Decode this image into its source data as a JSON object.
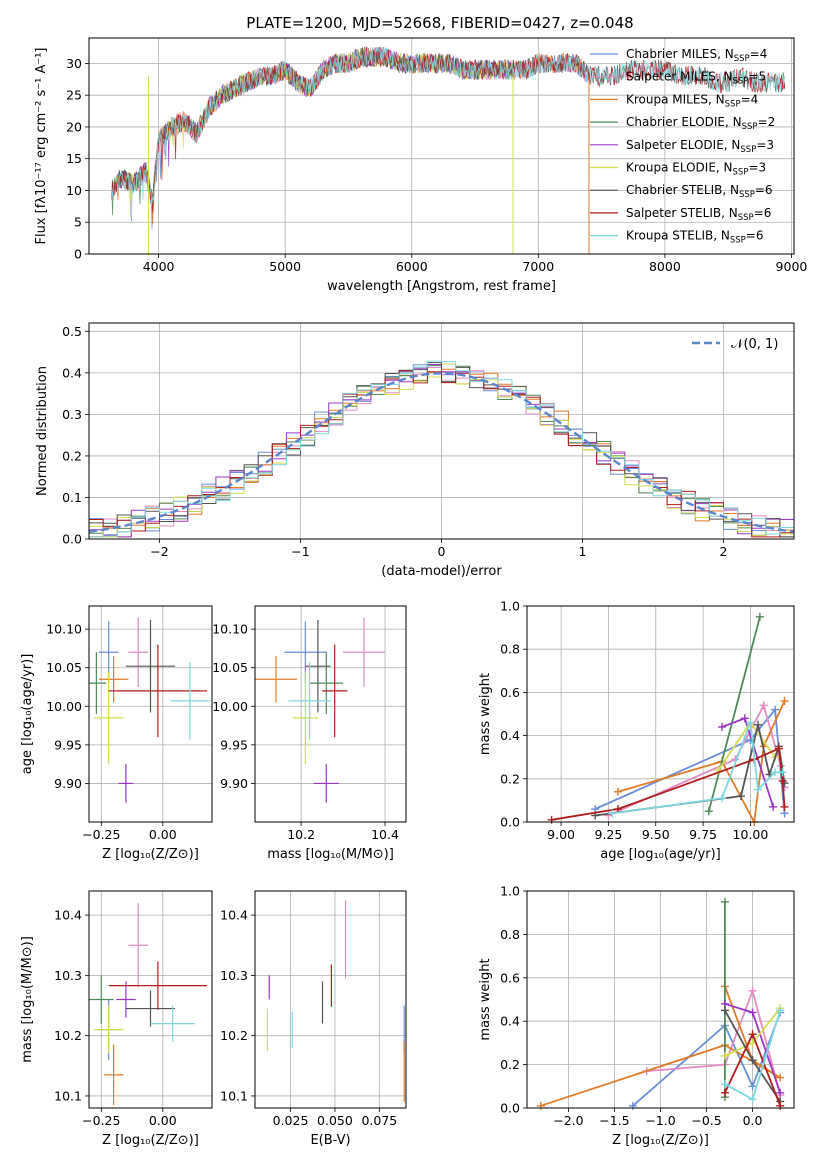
{
  "colors": {
    "c1": "#6a8fd8",
    "c2": "#e38bc3",
    "c3": "#e07b2a",
    "c4": "#4f8a5a",
    "c5": "#9a39c4",
    "c6": "#d4dc55",
    "c7": "#555555",
    "c8": "#b01e1e",
    "c9": "#7fd8e0",
    "norm": "#5a86cc"
  },
  "chart_data": [
    {
      "type": "line",
      "title": "PLATE=1200, MJD=52668, FIBERID=0427, z=0.048",
      "xlabel": "wavelength [Angstrom, rest frame]",
      "ylabel": "Flux [fλ10⁻¹⁷ erg cm⁻² s⁻¹ A⁻¹]",
      "xlim": [
        3450,
        9020
      ],
      "ylim": [
        0,
        34
      ],
      "xticks": [
        "4000",
        "5000",
        "6000",
        "7000",
        "8000",
        "9000"
      ],
      "yticks": [
        "0",
        "5",
        "10",
        "15",
        "20",
        "25",
        "30"
      ],
      "x": [
        3630,
        3700,
        3800,
        3900,
        3950,
        4000,
        4100,
        4200,
        4300,
        4400,
        4500,
        4600,
        4700,
        4800,
        4900,
        5000,
        5100,
        5200,
        5300,
        5400,
        5500,
        5600,
        5700,
        5800,
        5900,
        6000,
        6100,
        6200,
        6300,
        6400,
        6500,
        6600,
        6700,
        6800,
        6900,
        7000,
        7100,
        7200,
        7300,
        7400,
        7500,
        7600,
        7700,
        7800,
        7900,
        8000,
        8100,
        8200,
        8300,
        8400,
        8500,
        8600,
        8700,
        8800,
        8900
      ],
      "flux": [
        10,
        12,
        11,
        13,
        8,
        18,
        20,
        21,
        19,
        23,
        25,
        26,
        27,
        28,
        28,
        29,
        27,
        26,
        29,
        30,
        30,
        31,
        31,
        31,
        30,
        30,
        30,
        30,
        30,
        29,
        29,
        29,
        29,
        29,
        29,
        30,
        30,
        30,
        30,
        28,
        28,
        28,
        29,
        29,
        29,
        29,
        28,
        28,
        28,
        27,
        27,
        28,
        27,
        27,
        27
      ],
      "series": [
        {
          "name": "Chabrier MILES, N",
          "sub": "SSP",
          "n": "=4",
          "color": "#6a8fd8",
          "xmax": 7400
        },
        {
          "name": "Salpeter MILES, N",
          "sub": "SSP",
          "n": "=5",
          "color": "#e38bc3",
          "xmax": 7400
        },
        {
          "name": "Kroupa MILES, N",
          "sub": "SSP",
          "n": "=4",
          "color": "#e07b2a",
          "xmax": 7400
        },
        {
          "name": "Chabrier ELODIE, N",
          "sub": "SSP",
          "n": "=2",
          "color": "#4f8a5a",
          "xmax": 6800
        },
        {
          "name": "Salpeter ELODIE, N",
          "sub": "SSP",
          "n": "=3",
          "color": "#9a39c4",
          "xmax": 6800
        },
        {
          "name": "Kroupa ELODIE, N",
          "sub": "SSP",
          "n": "=3",
          "color": "#d4dc55",
          "xmax": 6800
        },
        {
          "name": "Chabrier STELIB, N",
          "sub": "SSP",
          "n": "=6",
          "color": "#555555",
          "xmax": 8950
        },
        {
          "name": "Salpeter STELIB, N",
          "sub": "SSP",
          "n": "=6",
          "color": "#b01e1e",
          "xmax": 8950
        },
        {
          "name": "Kroupa STELIB, N",
          "sub": "SSP",
          "n": "=6",
          "color": "#7fd8e0",
          "xmax": 8950
        }
      ],
      "legend": "upper right"
    },
    {
      "type": "line",
      "xlabel": "(data-model)/error",
      "ylabel": "Normed distribution",
      "xlim": [
        -2.5,
        2.5
      ],
      "ylim": [
        0,
        0.52
      ],
      "xticks": [
        "−2",
        "−1",
        "0",
        "1",
        "2"
      ],
      "yticks": [
        "0.0",
        "0.1",
        "0.2",
        "0.3",
        "0.4",
        "0.5"
      ],
      "legend": "upper right",
      "curve_label": "𝒩(0, 1)",
      "bin_width": 0.1,
      "grid": true
    },
    {
      "type": "scatter",
      "xlabel": "Z [log₁₀(Z/Z⊙)]",
      "ylabel": "age  [log₁₀(age/yr)]",
      "xlim": [
        -0.3,
        0.2
      ],
      "ylim": [
        9.85,
        10.13
      ],
      "xticks": [
        "−0.25",
        "0.00"
      ],
      "yticks": [
        "9.90",
        "9.95",
        "10.00",
        "10.05",
        "10.10"
      ],
      "points": [
        {
          "x": -0.22,
          "xerr": 0.04,
          "y": 10.07,
          "yerr": 0.04,
          "c": "c1"
        },
        {
          "x": -0.1,
          "xerr": 0.04,
          "y": 10.07,
          "yerr": 0.045,
          "c": "c2"
        },
        {
          "x": -0.2,
          "xerr": 0.06,
          "y": 10.035,
          "yerr": 0.03,
          "c": "c3"
        },
        {
          "x": -0.27,
          "xerr": 0.04,
          "y": 10.03,
          "yerr": 0.04,
          "c": "c4"
        },
        {
          "x": -0.15,
          "xerr": 0.03,
          "y": 9.9,
          "yerr": 0.025,
          "c": "c5"
        },
        {
          "x": -0.22,
          "xerr": 0.06,
          "y": 9.985,
          "yerr": 0.06,
          "c": "c6"
        },
        {
          "x": -0.05,
          "xerr": 0.1,
          "y": 10.052,
          "yerr": 0.06,
          "c": "c7"
        },
        {
          "x": -0.02,
          "xerr": 0.2,
          "y": 10.02,
          "yerr": 0.06,
          "c": "c8"
        },
        {
          "x": 0.11,
          "xerr": 0.08,
          "y": 10.007,
          "yerr": 0.05,
          "c": "c9"
        }
      ]
    },
    {
      "type": "scatter",
      "xlabel": "mass [log₁₀(M/M⊙)]",
      "ylabel": "",
      "xlim": [
        10.09,
        10.45
      ],
      "ylim": [
        9.85,
        10.13
      ],
      "xticks": [
        "10.2",
        "10.4"
      ],
      "yticks": [
        "9.90",
        "9.95",
        "10.00",
        "10.05",
        "10.10"
      ],
      "points": [
        {
          "x": 10.21,
          "xerr": 0.05,
          "y": 10.07,
          "yerr": 0.04,
          "c": "c1"
        },
        {
          "x": 10.35,
          "xerr": 0.05,
          "y": 10.07,
          "yerr": 0.045,
          "c": "c2"
        },
        {
          "x": 10.14,
          "xerr": 0.05,
          "y": 10.035,
          "yerr": 0.03,
          "c": "c3"
        },
        {
          "x": 10.26,
          "xerr": 0.04,
          "y": 10.03,
          "yerr": 0.04,
          "c": "c4"
        },
        {
          "x": 10.26,
          "xerr": 0.03,
          "y": 9.9,
          "yerr": 0.025,
          "c": "c5"
        },
        {
          "x": 10.21,
          "xerr": 0.03,
          "y": 9.985,
          "yerr": 0.06,
          "c": "c6"
        },
        {
          "x": 10.24,
          "xerr": 0.03,
          "y": 10.052,
          "yerr": 0.06,
          "c": "c7"
        },
        {
          "x": 10.28,
          "xerr": 0.03,
          "y": 10.02,
          "yerr": 0.06,
          "c": "c8"
        },
        {
          "x": 10.22,
          "xerr": 0.05,
          "y": 10.007,
          "yerr": 0.05,
          "c": "c9"
        }
      ]
    },
    {
      "type": "line",
      "xlabel": "age  [log₁₀(age/yr)]",
      "ylabel": "mass weight",
      "xlim": [
        8.82,
        10.23
      ],
      "ylim": [
        0,
        1
      ],
      "xticks": [
        "9.00",
        "9.25",
        "9.50",
        "9.75",
        "10.00"
      ],
      "yticks": [
        "0.0",
        "0.2",
        "0.4",
        "0.6",
        "0.8",
        "1.0"
      ],
      "series": [
        {
          "c": "c1",
          "x": [
            9.18,
            10.0,
            10.13,
            10.18
          ],
          "y": [
            0.06,
            0.38,
            0.52,
            0.04
          ]
        },
        {
          "c": "c2",
          "x": [
            9.25,
            9.92,
            10.07,
            10.16,
            10.18
          ],
          "y": [
            0.03,
            0.29,
            0.54,
            0.26,
            0.16
          ]
        },
        {
          "c": "c3",
          "x": [
            9.3,
            9.85,
            10.02,
            10.07,
            10.18
          ],
          "y": [
            0.14,
            0.28,
            0.0,
            0.35,
            0.56
          ]
        },
        {
          "c": "c4",
          "x": [
            9.78,
            10.05
          ],
          "y": [
            0.05,
            0.95
          ]
        },
        {
          "c": "c5",
          "x": [
            9.85,
            9.97,
            10.12
          ],
          "y": [
            0.44,
            0.48,
            0.07
          ]
        },
        {
          "c": "c6",
          "x": [
            9.83,
            10.0,
            10.13
          ],
          "y": [
            0.24,
            0.46,
            0.3
          ]
        },
        {
          "c": "c7",
          "x": [
            9.18,
            9.95,
            10.04,
            10.1,
            10.15,
            10.18
          ],
          "y": [
            0.03,
            0.12,
            0.45,
            0.22,
            0.35,
            0.18
          ]
        },
        {
          "c": "c8",
          "x": [
            8.95,
            9.3,
            10.02,
            10.15,
            10.17,
            10.18
          ],
          "y": [
            0.01,
            0.06,
            0.29,
            0.34,
            0.19,
            0.07
          ]
        },
        {
          "c": "c9",
          "x": [
            9.27,
            9.85,
            10.0,
            10.04,
            10.13,
            10.17
          ],
          "y": [
            0.04,
            0.11,
            0.46,
            0.15,
            0.23,
            0.23
          ]
        }
      ]
    },
    {
      "type": "scatter",
      "xlabel": "Z [log₁₀(Z/Z⊙)]",
      "ylabel": "mass [log₁₀(M/M⊙)]",
      "xlim": [
        -0.3,
        0.2
      ],
      "ylim": [
        10.08,
        10.44
      ],
      "xticks": [
        "−0.25",
        "0.00"
      ],
      "yticks": [
        "10.1",
        "10.2",
        "10.3",
        "10.4"
      ],
      "points": [
        {
          "x": -0.22,
          "xerr": 0.04,
          "y": 10.21,
          "yerr": 0.05,
          "c": "c1"
        },
        {
          "x": -0.1,
          "xerr": 0.04,
          "y": 10.35,
          "yerr": 0.07,
          "c": "c2"
        },
        {
          "x": -0.2,
          "xerr": 0.04,
          "y": 10.135,
          "yerr": 0.05,
          "c": "c3"
        },
        {
          "x": -0.25,
          "xerr": 0.05,
          "y": 10.26,
          "yerr": 0.04,
          "c": "c4"
        },
        {
          "x": -0.15,
          "xerr": 0.04,
          "y": 10.26,
          "yerr": 0.03,
          "c": "c5"
        },
        {
          "x": -0.22,
          "xerr": 0.06,
          "y": 10.21,
          "yerr": 0.04,
          "c": "c6"
        },
        {
          "x": -0.05,
          "xerr": 0.1,
          "y": 10.245,
          "yerr": 0.03,
          "c": "c7"
        },
        {
          "x": -0.02,
          "xerr": 0.2,
          "y": 10.283,
          "yerr": 0.04,
          "c": "c8"
        },
        {
          "x": 0.04,
          "xerr": 0.09,
          "y": 10.22,
          "yerr": 0.03,
          "c": "c9"
        }
      ]
    },
    {
      "type": "scatter",
      "xlabel": "E(B-V)",
      "ylabel": "",
      "xlim": [
        0.005,
        0.09
      ],
      "ylim": [
        10.08,
        10.44
      ],
      "xticks": [
        "0.025",
        "0.050",
        "0.075"
      ],
      "yticks": [
        "10.1",
        "10.2",
        "10.3",
        "10.4"
      ],
      "points": [
        {
          "x": 0.089,
          "xerr": 0,
          "y": 10.21,
          "yerr": 0.04,
          "c": "c1"
        },
        {
          "x": 0.056,
          "xerr": 0,
          "y": 10.36,
          "yerr": 0.065,
          "c": "c2"
        },
        {
          "x": 0.089,
          "xerr": 0,
          "y": 10.14,
          "yerr": 0.05,
          "c": "c3"
        },
        {
          "x": 0.013,
          "xerr": 0,
          "y": 10.28,
          "yerr": 0.02,
          "c": "c5"
        },
        {
          "x": 0.012,
          "xerr": 0,
          "y": 10.21,
          "yerr": 0.035,
          "c": "c6"
        },
        {
          "x": 0.043,
          "xerr": 0,
          "y": 10.255,
          "yerr": 0.035,
          "c": "c7"
        },
        {
          "x": 0.048,
          "xerr": 0,
          "y": 10.283,
          "yerr": 0.035,
          "c": "c8"
        },
        {
          "x": 0.026,
          "xerr": 0,
          "y": 10.21,
          "yerr": 0.03,
          "c": "c9"
        }
      ]
    },
    {
      "type": "line",
      "xlabel": "Z [log₁₀(Z/Z⊙)]",
      "ylabel": "mass weight",
      "xlim": [
        -2.45,
        0.45
      ],
      "ylim": [
        0,
        1
      ],
      "xticks": [
        "−2.0",
        "−1.5",
        "−1.0",
        "−0.5",
        "0.0"
      ],
      "yticks": [
        "0.0",
        "0.2",
        "0.4",
        "0.6",
        "0.8",
        "1.0"
      ],
      "series": [
        {
          "c": "c1",
          "x": [
            -1.3,
            -0.3,
            0.0,
            0.3
          ],
          "y": [
            0.01,
            0.38,
            0.1,
            0.44
          ]
        },
        {
          "c": "c2",
          "x": [
            -1.15,
            -0.3,
            0.0,
            0.3
          ],
          "y": [
            0.17,
            0.2,
            0.54,
            0.06
          ]
        },
        {
          "c": "c3",
          "x": [
            -2.3,
            -0.3,
            0.3,
            0.0,
            -0.3
          ],
          "y": [
            0.01,
            0.29,
            0.14,
            0.22,
            0.56
          ]
        },
        {
          "c": "c4",
          "x": [
            -0.3,
            -0.3
          ],
          "y": [
            0.95,
            0.05
          ]
        },
        {
          "c": "c5",
          "x": [
            -0.3,
            0.0,
            0.3
          ],
          "y": [
            0.48,
            0.44,
            0.07
          ]
        },
        {
          "c": "c6",
          "x": [
            -0.3,
            0.0,
            0.3
          ],
          "y": [
            0.24,
            0.3,
            0.46
          ]
        },
        {
          "c": "c7",
          "x": [
            -0.3,
            0.0,
            0.3
          ],
          "y": [
            0.45,
            0.22,
            0.03
          ]
        },
        {
          "c": "c8",
          "x": [
            -0.3,
            0.0,
            0.3
          ],
          "y": [
            0.07,
            0.34,
            0.01
          ]
        },
        {
          "c": "c9",
          "x": [
            -0.3,
            0.0,
            0.3
          ],
          "y": [
            0.11,
            0.04,
            0.45
          ]
        }
      ]
    }
  ]
}
